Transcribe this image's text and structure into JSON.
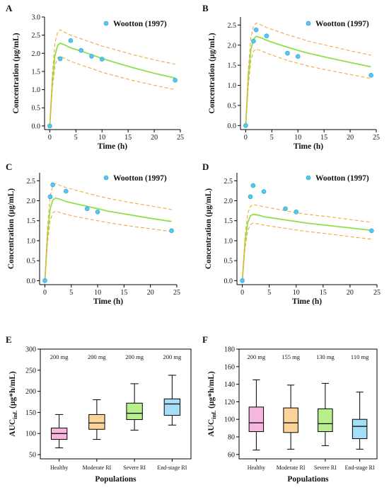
{
  "chart_data": [
    {
      "panel": "A",
      "type": "line",
      "xlabel": "Time (h)",
      "ylabel": "Concentration (µg/mL)",
      "xlim": [
        -1,
        25
      ],
      "ylim": [
        -0.1,
        3.0
      ],
      "xticks": [
        "0",
        "5",
        "10",
        "15",
        "20",
        "25"
      ],
      "yticks": [
        "0.0",
        "0.5",
        "1.0",
        "1.5",
        "2.0",
        "2.5",
        "3.0"
      ],
      "legend": "Wootton (1997)",
      "legend_position": "top-right",
      "colors": {
        "mean": "#8fe04a",
        "bounds": "#f2a93b",
        "obs": "#56c6f0"
      },
      "series": [
        {
          "role": "mean",
          "x": [
            0,
            0.5,
            1,
            1.5,
            2,
            3,
            4,
            6,
            8,
            10,
            12,
            16,
            20,
            24
          ],
          "y": [
            0,
            1.25,
            1.95,
            2.22,
            2.28,
            2.22,
            2.15,
            2.06,
            1.96,
            1.86,
            1.77,
            1.6,
            1.45,
            1.32
          ]
        },
        {
          "role": "upper",
          "x": [
            0,
            0.5,
            1,
            1.5,
            2,
            3,
            4,
            6,
            8,
            10,
            12,
            16,
            20,
            24
          ],
          "y": [
            0,
            1.45,
            2.3,
            2.58,
            2.65,
            2.57,
            2.5,
            2.4,
            2.3,
            2.2,
            2.12,
            1.96,
            1.82,
            1.7
          ]
        },
        {
          "role": "lower",
          "x": [
            0,
            0.5,
            1,
            1.5,
            2,
            3,
            4,
            6,
            8,
            10,
            12,
            16,
            20,
            24
          ],
          "y": [
            0,
            1.05,
            1.65,
            1.88,
            1.92,
            1.85,
            1.78,
            1.68,
            1.58,
            1.48,
            1.4,
            1.25,
            1.12,
            1.0
          ]
        },
        {
          "role": "observed",
          "x": [
            0,
            2,
            4,
            6,
            8,
            10,
            24
          ],
          "y": [
            0,
            1.85,
            2.35,
            2.08,
            1.92,
            1.84,
            1.26
          ]
        }
      ]
    },
    {
      "panel": "B",
      "type": "line",
      "xlabel": "Time (h)",
      "ylabel": "Concentration (µg/mL)",
      "xlim": [
        -1,
        25
      ],
      "ylim": [
        -0.1,
        2.7
      ],
      "xticks": [
        "0",
        "5",
        "10",
        "15",
        "20",
        "25"
      ],
      "yticks": [
        "0.0",
        "0.5",
        "1.0",
        "1.5",
        "2.0",
        "2.5"
      ],
      "legend": "Wootton (1997)",
      "legend_position": "top-right",
      "colors": {
        "mean": "#8fe04a",
        "bounds": "#f2a93b",
        "obs": "#56c6f0"
      },
      "series": [
        {
          "role": "mean",
          "x": [
            0,
            0.5,
            1,
            1.5,
            2,
            3,
            4,
            6,
            8,
            10,
            12,
            16,
            20,
            24
          ],
          "y": [
            0,
            1.2,
            1.9,
            2.15,
            2.22,
            2.18,
            2.12,
            2.03,
            1.95,
            1.87,
            1.8,
            1.68,
            1.57,
            1.46
          ]
        },
        {
          "role": "upper",
          "x": [
            0,
            0.5,
            1,
            1.5,
            2,
            3,
            4,
            6,
            8,
            10,
            12,
            16,
            20,
            24
          ],
          "y": [
            0,
            1.4,
            2.2,
            2.48,
            2.55,
            2.5,
            2.44,
            2.35,
            2.26,
            2.18,
            2.1,
            1.98,
            1.86,
            1.75
          ]
        },
        {
          "role": "lower",
          "x": [
            0,
            0.5,
            1,
            1.5,
            2,
            3,
            4,
            6,
            8,
            10,
            12,
            16,
            20,
            24
          ],
          "y": [
            0,
            1.0,
            1.62,
            1.85,
            1.9,
            1.86,
            1.8,
            1.71,
            1.62,
            1.55,
            1.48,
            1.37,
            1.27,
            1.17
          ]
        },
        {
          "role": "observed",
          "x": [
            0,
            1.5,
            2,
            4,
            8,
            10,
            24
          ],
          "y": [
            0,
            2.1,
            2.38,
            2.23,
            1.8,
            1.72,
            1.25
          ]
        }
      ]
    },
    {
      "panel": "C",
      "type": "line",
      "xlabel": "Time (h)",
      "ylabel": "Concentration (µg/mL)",
      "xlim": [
        -1,
        25
      ],
      "ylim": [
        -0.1,
        2.7
      ],
      "xticks": [
        "0",
        "5",
        "10",
        "15",
        "20",
        "25"
      ],
      "yticks": [
        "0.0",
        "0.5",
        "1.0",
        "1.5",
        "2.0",
        "2.5"
      ],
      "legend": "Wootton (1997)",
      "legend_position": "top-right",
      "colors": {
        "mean": "#8fe04a",
        "bounds": "#f2a93b",
        "obs": "#56c6f0"
      },
      "series": [
        {
          "role": "mean",
          "x": [
            0,
            0.5,
            1,
            1.5,
            2,
            3,
            4,
            6,
            8,
            10,
            12,
            16,
            20,
            24
          ],
          "y": [
            0,
            1.15,
            1.8,
            2.02,
            2.07,
            2.03,
            1.98,
            1.92,
            1.86,
            1.8,
            1.74,
            1.65,
            1.56,
            1.48
          ]
        },
        {
          "role": "upper",
          "x": [
            0,
            0.5,
            1,
            1.5,
            2,
            3,
            4,
            6,
            8,
            10,
            12,
            16,
            20,
            24
          ],
          "y": [
            0,
            1.35,
            2.12,
            2.38,
            2.43,
            2.38,
            2.33,
            2.26,
            2.19,
            2.12,
            2.06,
            1.96,
            1.87,
            1.78
          ]
        },
        {
          "role": "lower",
          "x": [
            0,
            0.5,
            1,
            1.5,
            2,
            3,
            4,
            6,
            8,
            10,
            12,
            16,
            20,
            24
          ],
          "y": [
            0,
            0.95,
            1.5,
            1.7,
            1.74,
            1.7,
            1.66,
            1.6,
            1.55,
            1.5,
            1.45,
            1.37,
            1.3,
            1.23
          ]
        },
        {
          "role": "observed",
          "x": [
            0,
            1,
            1.5,
            4,
            8,
            10,
            24
          ],
          "y": [
            0,
            2.1,
            2.4,
            2.24,
            1.8,
            1.72,
            1.25
          ]
        }
      ]
    },
    {
      "panel": "D",
      "type": "line",
      "xlabel": "Time (h)",
      "ylabel": "Concentration (µg/mL)",
      "xlim": [
        -1,
        25
      ],
      "ylim": [
        -0.1,
        2.7
      ],
      "xticks": [
        "0",
        "5",
        "10",
        "15",
        "20",
        "25"
      ],
      "yticks": [
        "0.0",
        "0.5",
        "1.0",
        "1.5",
        "2.0",
        "2.5"
      ],
      "legend": "Wootton (1997)",
      "legend_position": "top-right",
      "colors": {
        "mean": "#8fe04a",
        "bounds": "#f2a93b",
        "obs": "#56c6f0"
      },
      "series": [
        {
          "role": "mean",
          "x": [
            0,
            0.5,
            1,
            1.5,
            2,
            3,
            4,
            6,
            8,
            10,
            12,
            16,
            20,
            24
          ],
          "y": [
            0,
            0.95,
            1.45,
            1.62,
            1.66,
            1.64,
            1.6,
            1.56,
            1.52,
            1.48,
            1.44,
            1.38,
            1.32,
            1.26
          ]
        },
        {
          "role": "upper",
          "x": [
            0,
            0.5,
            1,
            1.5,
            2,
            3,
            4,
            6,
            8,
            10,
            12,
            16,
            20,
            24
          ],
          "y": [
            0,
            1.1,
            1.68,
            1.86,
            1.9,
            1.88,
            1.85,
            1.8,
            1.75,
            1.7,
            1.66,
            1.6,
            1.53,
            1.46
          ]
        },
        {
          "role": "lower",
          "x": [
            0,
            0.5,
            1,
            1.5,
            2,
            3,
            4,
            6,
            8,
            10,
            12,
            16,
            20,
            24
          ],
          "y": [
            0,
            0.8,
            1.25,
            1.4,
            1.44,
            1.42,
            1.39,
            1.35,
            1.31,
            1.27,
            1.23,
            1.17,
            1.1,
            1.04
          ]
        },
        {
          "role": "observed",
          "x": [
            0,
            1.5,
            2,
            4,
            8,
            10,
            24
          ],
          "y": [
            0,
            2.1,
            2.38,
            2.23,
            1.8,
            1.72,
            1.25
          ]
        }
      ]
    },
    {
      "panel": "E",
      "type": "box",
      "xlabel": "Populations",
      "ylabel": "AUCinf. (µg*h/mL)",
      "ylim": [
        40,
        300
      ],
      "yticks": [
        "50",
        "100",
        "150",
        "200",
        "250",
        "300"
      ],
      "categories": [
        "Healthy",
        "Moderate RI",
        "Severe RI",
        "End-stage RI"
      ],
      "doses": [
        "200 mg",
        "200 mg",
        "200 mg",
        "200 mg"
      ],
      "colors": [
        "#f7b6de",
        "#fcd49a",
        "#b6ef8c",
        "#a6def7"
      ],
      "boxes": [
        {
          "min": 66,
          "q1": 86,
          "median": 100,
          "q3": 113,
          "max": 145
        },
        {
          "min": 86,
          "q1": 110,
          "median": 125,
          "q3": 145,
          "max": 180
        },
        {
          "min": 108,
          "q1": 133,
          "median": 148,
          "q3": 172,
          "max": 218
        },
        {
          "min": 120,
          "q1": 143,
          "median": 170,
          "q3": 182,
          "max": 238
        }
      ]
    },
    {
      "panel": "F",
      "type": "box",
      "xlabel": "Populations",
      "ylabel": "AUCinf. (µg*h/mL)",
      "ylim": [
        55,
        180
      ],
      "yticks": [
        "60",
        "80",
        "100",
        "120",
        "140",
        "160",
        "180"
      ],
      "categories": [
        "Healthy",
        "Moderate RI",
        "Severe RI",
        "End-stage RI"
      ],
      "doses": [
        "200 mg",
        "155 mg",
        "130 mg",
        "110 mg"
      ],
      "colors": [
        "#f7b6de",
        "#fcd49a",
        "#b6ef8c",
        "#a6def7"
      ],
      "boxes": [
        {
          "min": 65,
          "q1": 86,
          "median": 96,
          "q3": 114,
          "max": 145
        },
        {
          "min": 66,
          "q1": 85,
          "median": 96,
          "q3": 113,
          "max": 139
        },
        {
          "min": 70,
          "q1": 86,
          "median": 95,
          "q3": 112,
          "max": 141
        },
        {
          "min": 66,
          "q1": 78,
          "median": 92,
          "q3": 100,
          "max": 131
        }
      ]
    }
  ]
}
